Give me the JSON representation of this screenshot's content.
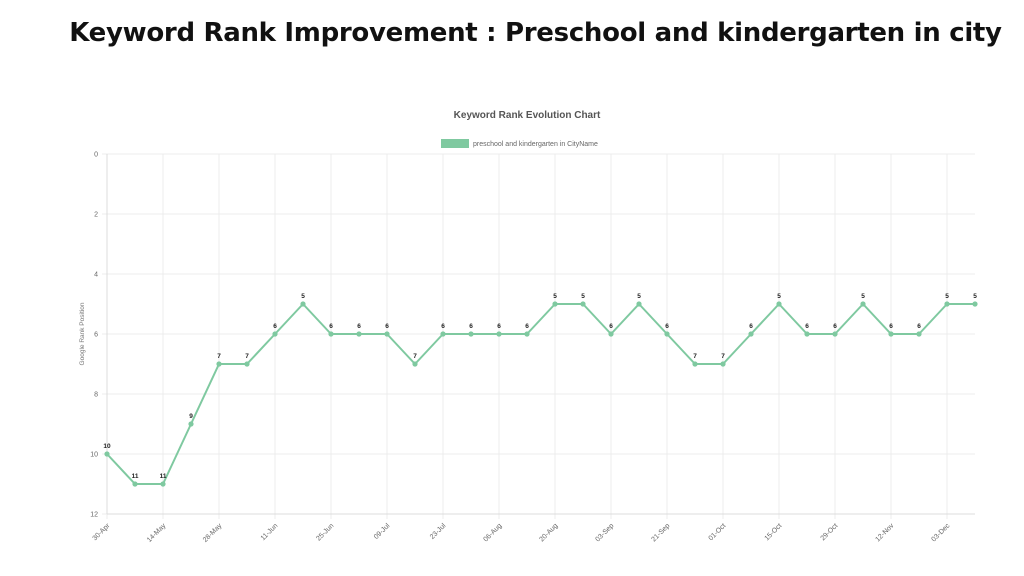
{
  "page": {
    "heading": "Keyword Rank Improvement : Preschool and kindergarten in city"
  },
  "chart_data": {
    "type": "line",
    "title": "Keyword Rank Evolution Chart",
    "xlabel": "",
    "ylabel": "Google Rank Position",
    "y_reversed": true,
    "ylim": [
      0,
      12
    ],
    "yticks": [
      0,
      2,
      4,
      6,
      8,
      10,
      12
    ],
    "grid": true,
    "legend_position": "top-center",
    "xtick_labels": [
      "30-Apr",
      "14-May",
      "28-May",
      "11-Jun",
      "25-Jun",
      "09-Jul",
      "23-Jul",
      "06-Aug",
      "20-Aug",
      "03-Sep",
      "21-Sep",
      "01-Oct",
      "15-Oct",
      "29-Oct",
      "12-Nov",
      "03-Dec"
    ],
    "series": [
      {
        "name": "preschool and kindergarten in CityName",
        "color": "#7fc9a0",
        "values": [
          10,
          11,
          11,
          9,
          7,
          7,
          6,
          5,
          6,
          6,
          6,
          7,
          6,
          6,
          6,
          6,
          5,
          5,
          6,
          5,
          6,
          7,
          7,
          6,
          5,
          6,
          6,
          5,
          6,
          6,
          5,
          5
        ],
        "data_labels": [
          "10",
          "11",
          "11",
          "9",
          "7",
          "7",
          "6",
          "5",
          "6",
          "6",
          "6",
          "7",
          "6",
          "6",
          "6",
          "6",
          "5",
          "5",
          "6",
          "5",
          "6",
          "7",
          "7",
          "6",
          "5",
          "6",
          "6",
          "5",
          "6",
          "6",
          "5",
          "5"
        ]
      }
    ]
  }
}
